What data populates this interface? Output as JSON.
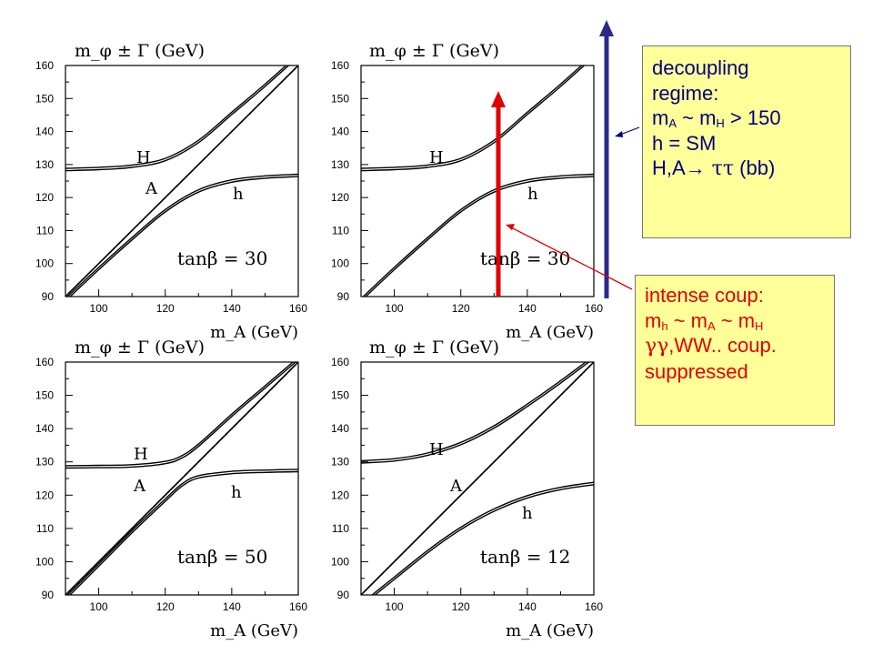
{
  "chart_data": [
    {
      "type": "line",
      "title": "m_φ ± Γ (GeV)",
      "xlabel": "m_A (GeV)",
      "xlim": [
        90,
        160
      ],
      "ylim": [
        90,
        160
      ],
      "x_ticks": [
        100,
        120,
        140,
        160
      ],
      "y_ticks": [
        90,
        100,
        110,
        120,
        130,
        140,
        150,
        160
      ],
      "annotation": "tanβ = 30",
      "curve_labels": [
        "H",
        "A",
        "h"
      ],
      "series": [
        {
          "name": "H",
          "x": [
            90,
            100,
            110,
            120,
            130,
            140,
            150,
            160
          ],
          "y": [
            128.5,
            128.8,
            129.5,
            131.5,
            137,
            145.5,
            154,
            163
          ]
        },
        {
          "name": "h",
          "x": [
            90,
            100,
            110,
            120,
            130,
            140,
            150,
            160
          ],
          "y": [
            89,
            98.5,
            107.5,
            116,
            122,
            125,
            126.2,
            126.7
          ]
        },
        {
          "name": "A",
          "x": [
            90,
            160
          ],
          "y": [
            90,
            160
          ]
        }
      ]
    },
    {
      "type": "line",
      "title": "m_φ ± Γ (GeV)",
      "xlabel": "m_A (GeV)",
      "xlim": [
        90,
        160
      ],
      "ylim": [
        90,
        160
      ],
      "x_ticks": [
        100,
        120,
        140,
        160
      ],
      "y_ticks": [
        90,
        100,
        110,
        120,
        130,
        140,
        150,
        160
      ],
      "annotation": "tanβ = 30",
      "curve_labels": [
        "H",
        "h"
      ],
      "series": [
        {
          "name": "H",
          "x": [
            90,
            100,
            110,
            120,
            130,
            140,
            150,
            160
          ],
          "y": [
            128.5,
            128.8,
            129.5,
            131.5,
            137,
            145.5,
            154,
            163
          ]
        },
        {
          "name": "h",
          "x": [
            90,
            100,
            110,
            120,
            130,
            140,
            150,
            160
          ],
          "y": [
            89,
            98.5,
            107.5,
            116,
            122,
            125,
            126.2,
            126.7
          ]
        }
      ]
    },
    {
      "type": "line",
      "title": "m_φ ± Γ (GeV)",
      "xlabel": "m_A (GeV)",
      "xlim": [
        90,
        160
      ],
      "ylim": [
        90,
        160
      ],
      "x_ticks": [
        100,
        120,
        140,
        160
      ],
      "y_ticks": [
        90,
        100,
        110,
        120,
        130,
        140,
        150,
        160
      ],
      "annotation": "tanβ = 50",
      "curve_labels": [
        "H",
        "A",
        "h"
      ],
      "series": [
        {
          "name": "H",
          "x": [
            90,
            100,
            110,
            120,
            125,
            130,
            140,
            150,
            160
          ],
          "y": [
            128.5,
            128.6,
            128.8,
            129.8,
            131.5,
            135,
            144,
            152.5,
            161
          ]
        },
        {
          "name": "h",
          "x": [
            90,
            100,
            110,
            120,
            125,
            130,
            140,
            150,
            160
          ],
          "y": [
            89,
            99,
            109,
            118.5,
            123,
            125.5,
            126.8,
            127.2,
            127.4
          ]
        },
        {
          "name": "A",
          "x": [
            90,
            160
          ],
          "y": [
            90,
            160
          ]
        }
      ]
    },
    {
      "type": "line",
      "title": "m_φ ± Γ (GeV)",
      "xlabel": "m_A (GeV)",
      "xlim": [
        90,
        160
      ],
      "ylim": [
        90,
        160
      ],
      "x_ticks": [
        100,
        120,
        140,
        160
      ],
      "y_ticks": [
        90,
        100,
        110,
        120,
        130,
        140,
        150,
        160
      ],
      "annotation": "tanβ = 12",
      "curve_labels": [
        "H",
        "A",
        "h"
      ],
      "series": [
        {
          "name": "H",
          "x": [
            90,
            100,
            110,
            120,
            130,
            140,
            150,
            160
          ],
          "y": [
            130,
            130.6,
            132.3,
            135.5,
            140.5,
            147,
            154,
            161.5
          ]
        },
        {
          "name": "h",
          "x": [
            90,
            100,
            110,
            120,
            130,
            140,
            150,
            160
          ],
          "y": [
            87,
            95,
            103,
            110,
            115.5,
            119.5,
            122,
            123.5
          ]
        },
        {
          "name": "A",
          "x": [
            90,
            160
          ],
          "y": [
            90,
            160
          ]
        }
      ]
    }
  ],
  "notes": {
    "decoupling": {
      "line1": "decoupling",
      "line2": "regime:",
      "line3_a": "m",
      "line3_a_sub": "A",
      "line3_b": " ~ m",
      "line3_b_sub": "H",
      "line3_c": " > 150",
      "line4": "h = SM",
      "line5_a": "H,A",
      "line5_arrow": "→",
      "line5_tau": " ττ",
      "line5_b": "  (bb)"
    },
    "intense": {
      "line1": "intense coup:",
      "line2_a": "m",
      "line2_a_sub": "h",
      "line2_b": " ~ m",
      "line2_b_sub": "A",
      "line2_c": " ~ m",
      "line2_c_sub": "H",
      "line3_gg": "γγ",
      "line3_b": ",WW.. coup.",
      "line4": "suppressed"
    }
  },
  "colors": {
    "curve": "#000000",
    "blue_arrow": "#2a2a8a",
    "red_arrow": "#e00000",
    "note_fill": "#ffff99",
    "blue_text": "#000080",
    "red_text": "#e00000"
  }
}
